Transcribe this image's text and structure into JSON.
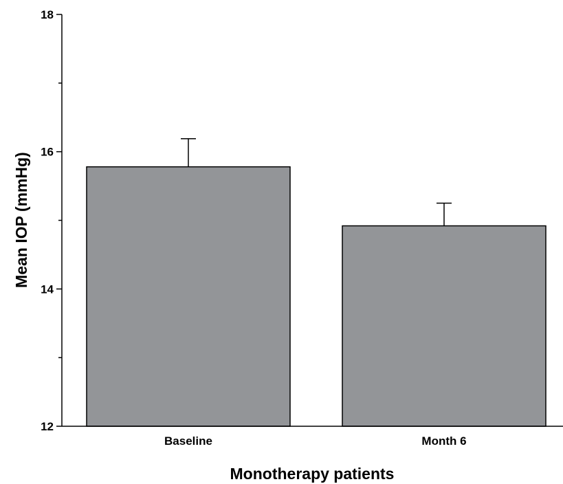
{
  "chart_data": {
    "type": "bar",
    "categories": [
      "Baseline",
      "Month 6"
    ],
    "values": [
      15.78,
      14.92
    ],
    "error_upper": [
      16.19,
      15.25
    ],
    "xlabel": "Monotherapy patients",
    "ylabel": "Mean IOP (mmHg)",
    "ylim": [
      12,
      18
    ],
    "major_ticks": [
      12,
      14,
      16,
      18
    ],
    "minor_ticks": [
      13,
      15,
      17
    ],
    "grid": false,
    "bar_color": "#939598",
    "edge_color": "#000000"
  }
}
